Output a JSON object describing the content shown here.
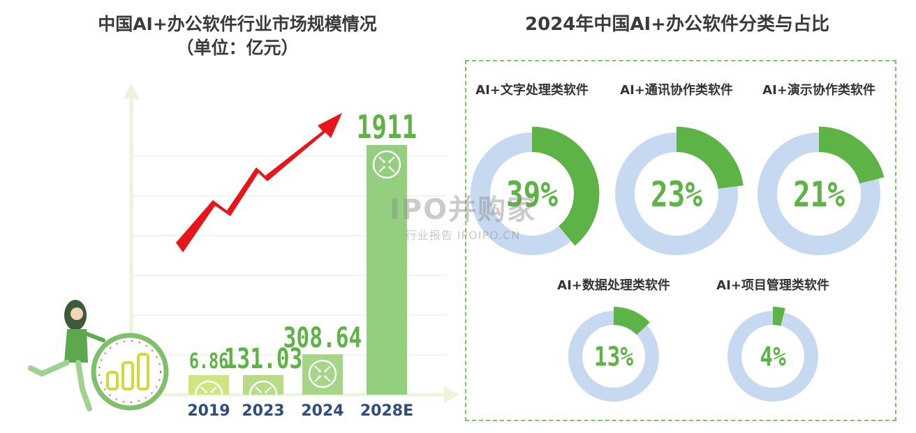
{
  "titles": {
    "left_line1": "中国AI+办公软件行业市场规模情况",
    "left_line2": "（单位：亿元）",
    "right": "2024年中国AI+办公软件分类与占比"
  },
  "watermark": {
    "main": "IPO并购家",
    "sub": "行业报告 IPOIPO.CN"
  },
  "colors": {
    "bar_2019": "#cfe57f",
    "bar_2023": "#b6dc87",
    "bar_2024": "#a6d587",
    "bar_2028": "#93cf7f",
    "value_label": "#5db345",
    "year_label": "#2e4c7c",
    "donut_track": "#c7d9f0",
    "donut_fill": "#5db345",
    "arrow": "#e8151b",
    "panel_border": "#7cc36a"
  },
  "chart_data": [
    {
      "type": "bar",
      "title": "中国AI+办公软件行业市场规模情况",
      "subtitle": "（单位：亿元）",
      "categories": [
        "2019",
        "2023",
        "2024",
        "2028E"
      ],
      "values": [
        6.86,
        131.03,
        308.64,
        1911
      ],
      "value_labels": [
        "6.86",
        "131.03",
        "308.64",
        "1911"
      ],
      "ylim": [
        0,
        2300
      ],
      "grid": true,
      "annotation": "red upward trend arrow"
    },
    {
      "type": "pie",
      "variant": "donut",
      "title": "2024年中国AI+办公软件分类与占比",
      "categories": [
        "AI+文字处理类软件",
        "AI+通讯协作类软件",
        "AI+演示协作类软件",
        "AI+数据处理类软件",
        "AI+项目管理类软件"
      ],
      "values": [
        39,
        23,
        21,
        13,
        4
      ],
      "value_labels": [
        "39%",
        "23%",
        "21%",
        "13%",
        "4%"
      ]
    }
  ]
}
